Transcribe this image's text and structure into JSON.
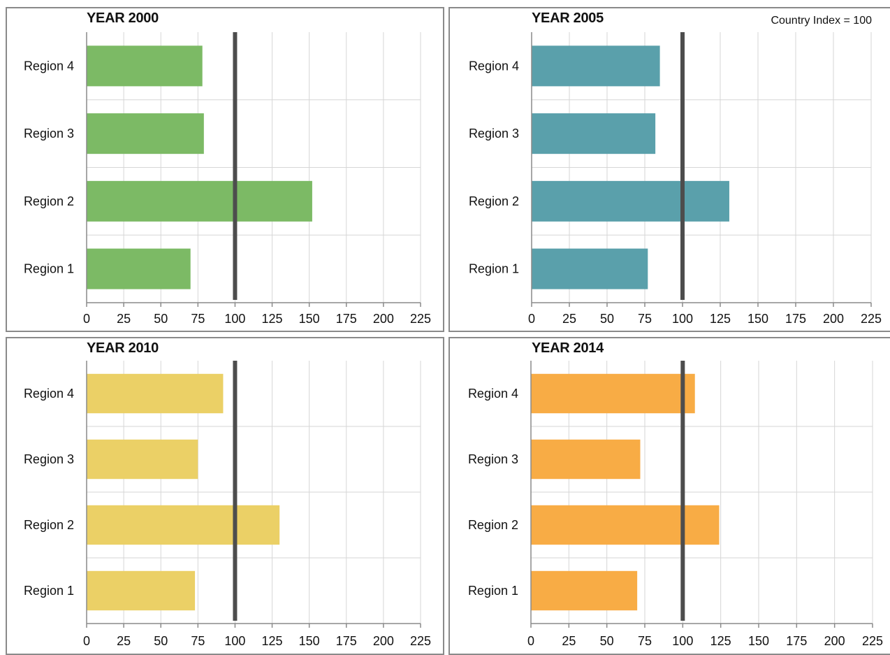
{
  "chart_data": [
    {
      "type": "bar",
      "title": "YEAR 2000",
      "categories": [
        "Region 4",
        "Region 3",
        "Region 2",
        "Region 1"
      ],
      "values": [
        78,
        79,
        152,
        70
      ],
      "reference_line": 100,
      "xlim": [
        0,
        225
      ],
      "xticks": [
        "0",
        "25",
        "50",
        "75",
        "100",
        "125",
        "150",
        "175",
        "200",
        "225"
      ],
      "color": "#7cba65",
      "grid": true
    },
    {
      "type": "bar",
      "title": "YEAR 2005",
      "annotation": "Country Index = 100",
      "categories": [
        "Region 4",
        "Region 3",
        "Region 2",
        "Region 1"
      ],
      "values": [
        85,
        82,
        131,
        77
      ],
      "reference_line": 100,
      "xlim": [
        0,
        225
      ],
      "xticks": [
        "0",
        "25",
        "50",
        "75",
        "100",
        "125",
        "150",
        "175",
        "200",
        "225"
      ],
      "color": "#5aa0ab",
      "grid": true
    },
    {
      "type": "bar",
      "title": "YEAR 2010",
      "categories": [
        "Region 4",
        "Region 3",
        "Region 2",
        "Region 1"
      ],
      "values": [
        92,
        75,
        130,
        73
      ],
      "reference_line": 100,
      "xlim": [
        0,
        225
      ],
      "xticks": [
        "0",
        "25",
        "50",
        "75",
        "100",
        "125",
        "150",
        "175",
        "200",
        "225"
      ],
      "color": "#ebd066",
      "grid": true
    },
    {
      "type": "bar",
      "title": "YEAR 2014",
      "categories": [
        "Region 4",
        "Region 3",
        "Region 2",
        "Region 1"
      ],
      "values": [
        108,
        72,
        124,
        70
      ],
      "reference_line": 100,
      "xlim": [
        0,
        225
      ],
      "xticks": [
        "0",
        "25",
        "50",
        "75",
        "100",
        "125",
        "150",
        "175",
        "200",
        "225"
      ],
      "color": "#f8ac45",
      "grid": true
    }
  ]
}
